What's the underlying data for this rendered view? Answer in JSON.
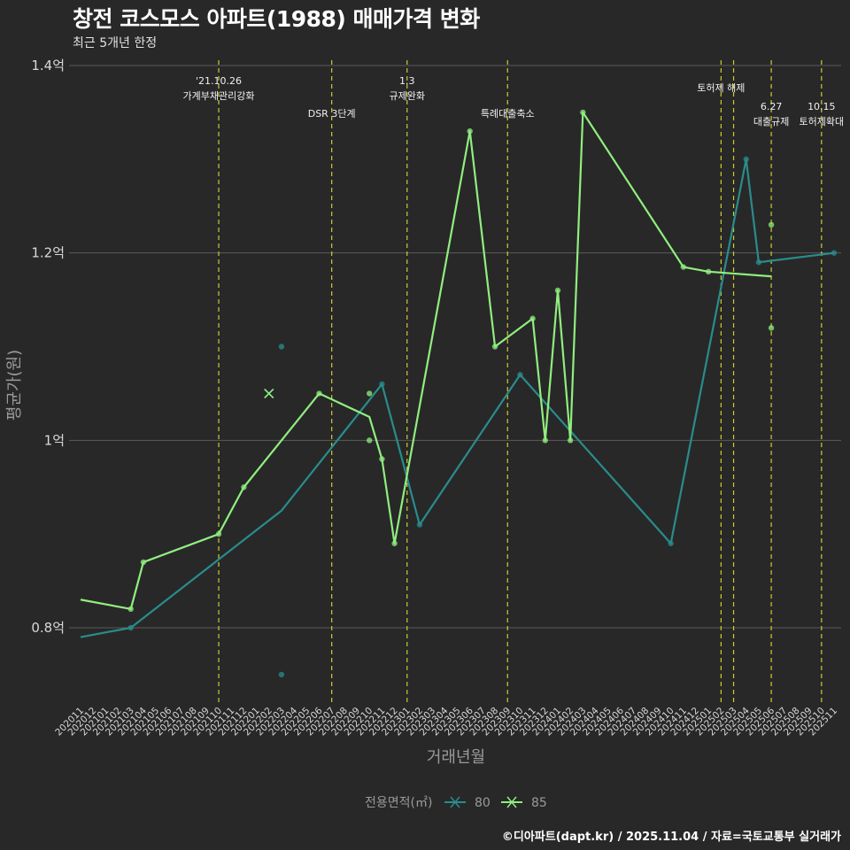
{
  "header": {
    "title": "창전 코스모스 아파트(1988) 매매가격 변화",
    "subtitle": "최근 5개년 한정"
  },
  "caption": "©디아파트(dapt.kr) / 2025.11.04 / 자료=국토교통부 실거래가",
  "colors": {
    "background": "#282828",
    "grid": "#5a5a5a",
    "policy_line": "#cccc33",
    "series_80": "#2a8c8c",
    "series_85": "#90ee7f"
  },
  "chart_data": {
    "type": "line",
    "title": "창전 코스모스 아파트(1988) 매매가격 변화",
    "subtitle": "최근 5개년 한정",
    "xlabel": "거래년월",
    "ylabel": "평균가(원)",
    "ylim": [
      0.72,
      1.41
    ],
    "yticks": [
      {
        "value": 0.8,
        "label": "0.8억"
      },
      {
        "value": 1.0,
        "label": "1억"
      },
      {
        "value": 1.2,
        "label": "1.2억"
      },
      {
        "value": 1.4,
        "label": "1.4억"
      }
    ],
    "categories": [
      "202011",
      "202012",
      "202101",
      "202102",
      "202103",
      "202104",
      "202105",
      "202106",
      "202107",
      "202108",
      "202109",
      "202110",
      "202111",
      "202112",
      "202201",
      "202202",
      "202203",
      "202204",
      "202205",
      "202206",
      "202207",
      "202208",
      "202209",
      "202210",
      "202211",
      "202212",
      "202301",
      "202302",
      "202303",
      "202304",
      "202305",
      "202306",
      "202307",
      "202308",
      "202309",
      "202310",
      "202311",
      "202312",
      "202401",
      "202402",
      "202403",
      "202404",
      "202405",
      "202406",
      "202407",
      "202408",
      "202409",
      "202410",
      "202411",
      "202412",
      "202501",
      "202502",
      "202503",
      "202504",
      "202505",
      "202506",
      "202507",
      "202508",
      "202509",
      "202510",
      "202511"
    ],
    "legend_title": "전용면적(㎡)",
    "series": [
      {
        "name": "80",
        "color": "#2a8c8c",
        "line": [
          [
            "202011",
            0.79
          ],
          [
            "202103",
            0.8
          ],
          [
            "202203",
            0.925
          ],
          [
            "202211",
            1.06
          ],
          [
            "202302",
            0.91
          ],
          [
            "202310",
            1.07
          ],
          [
            "202410",
            0.89
          ],
          [
            "202504",
            1.3
          ],
          [
            "202505",
            1.19
          ],
          [
            "202511",
            1.2
          ]
        ],
        "points": [
          [
            "202103",
            0.8
          ],
          [
            "202203",
            1.1
          ],
          [
            "202203",
            0.75
          ],
          [
            "202211",
            1.06
          ],
          [
            "202302",
            0.91
          ],
          [
            "202310",
            1.07
          ],
          [
            "202410",
            0.89
          ],
          [
            "202504",
            1.3
          ],
          [
            "202505",
            1.19
          ],
          [
            "202511",
            1.2
          ]
        ],
        "cross": [
          [
            "202202",
            1.05
          ]
        ]
      },
      {
        "name": "85",
        "color": "#90ee7f",
        "line": [
          [
            "202011",
            0.83
          ],
          [
            "202103",
            0.82
          ],
          [
            "202104",
            0.87
          ],
          [
            "202110",
            0.9
          ],
          [
            "202112",
            0.95
          ],
          [
            "202206",
            1.05
          ],
          [
            "202210",
            1.025
          ],
          [
            "202211",
            0.98
          ],
          [
            "202212",
            0.89
          ],
          [
            "202306",
            1.33
          ],
          [
            "202308",
            1.1
          ],
          [
            "202311",
            1.13
          ],
          [
            "202312",
            1.0
          ],
          [
            "202401",
            1.16
          ],
          [
            "202402",
            1.0
          ],
          [
            "202403",
            1.35
          ],
          [
            "202411",
            1.185
          ],
          [
            "202501",
            1.18
          ],
          [
            "202506",
            1.175
          ]
        ],
        "points": [
          [
            "202103",
            0.82
          ],
          [
            "202104",
            0.87
          ],
          [
            "202110",
            0.9
          ],
          [
            "202112",
            0.95
          ],
          [
            "202206",
            1.05
          ],
          [
            "202210",
            1.05
          ],
          [
            "202210",
            1.0
          ],
          [
            "202211",
            0.98
          ],
          [
            "202212",
            0.89
          ],
          [
            "202306",
            1.33
          ],
          [
            "202308",
            1.1
          ],
          [
            "202311",
            1.13
          ],
          [
            "202312",
            1.0
          ],
          [
            "202401",
            1.16
          ],
          [
            "202402",
            1.0
          ],
          [
            "202403",
            1.35
          ],
          [
            "202411",
            1.185
          ],
          [
            "202501",
            1.18
          ],
          [
            "202506",
            1.23
          ],
          [
            "202506",
            1.12
          ]
        ],
        "cross": [
          [
            "202202",
            1.05
          ]
        ]
      }
    ],
    "policy_lines": [
      {
        "month": "202110",
        "lines": [
          "'21.10.26",
          "가계부채관리강화"
        ],
        "row": 1
      },
      {
        "month": "202207",
        "lines": [
          "DSR 3단계"
        ],
        "row": 2
      },
      {
        "month": "202301",
        "lines": [
          "1.3",
          "규제완화"
        ],
        "row": 1
      },
      {
        "month": "202309",
        "lines": [
          "특례대출축소"
        ],
        "row": 2
      },
      {
        "month": "202502",
        "lines": [
          "토허제 해제"
        ],
        "row": 1
      },
      {
        "month": "202503",
        "lines": [],
        "row": 1
      },
      {
        "month": "202506",
        "lines": [
          "6.27",
          "대출규제"
        ],
        "row": 2
      },
      {
        "month": "202510",
        "lines": [
          "10.15",
          "토허제확대"
        ],
        "row": 2
      }
    ]
  }
}
